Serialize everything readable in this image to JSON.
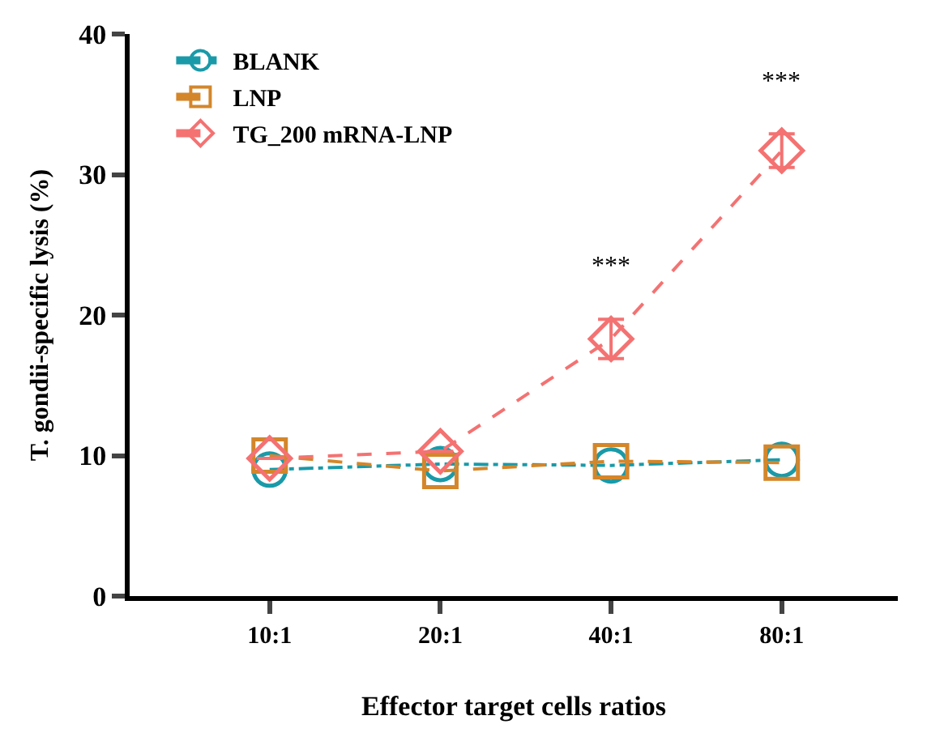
{
  "chart_data": {
    "type": "line",
    "xlabel": "Effector target cells ratios",
    "ylabel": "T. gondii-specific lysis (%)",
    "categories": [
      "10:1",
      "20:1",
      "40:1",
      "80:1"
    ],
    "series": [
      {
        "name": "BLANK",
        "color": "#1a9aa8",
        "marker": "circle",
        "line_style": "dashdot",
        "values": [
          9.0,
          9.4,
          9.3,
          9.7
        ]
      },
      {
        "name": "LNP",
        "color": "#d4862a",
        "marker": "square",
        "line_style": "dashed",
        "values": [
          10.0,
          8.9,
          9.6,
          9.5
        ]
      },
      {
        "name": "TG_200 mRNA-LNP",
        "color": "#f47272",
        "marker": "diamond",
        "line_style": "dashed",
        "values": [
          9.8,
          10.3,
          18.3,
          31.7
        ],
        "errors": [
          null,
          null,
          1.4,
          1.2
        ]
      }
    ],
    "annotations": [
      "***",
      "***"
    ],
    "ylim": [
      0,
      40
    ],
    "yticks": [
      0,
      10,
      20,
      30,
      40
    ],
    "legend": "top left"
  }
}
